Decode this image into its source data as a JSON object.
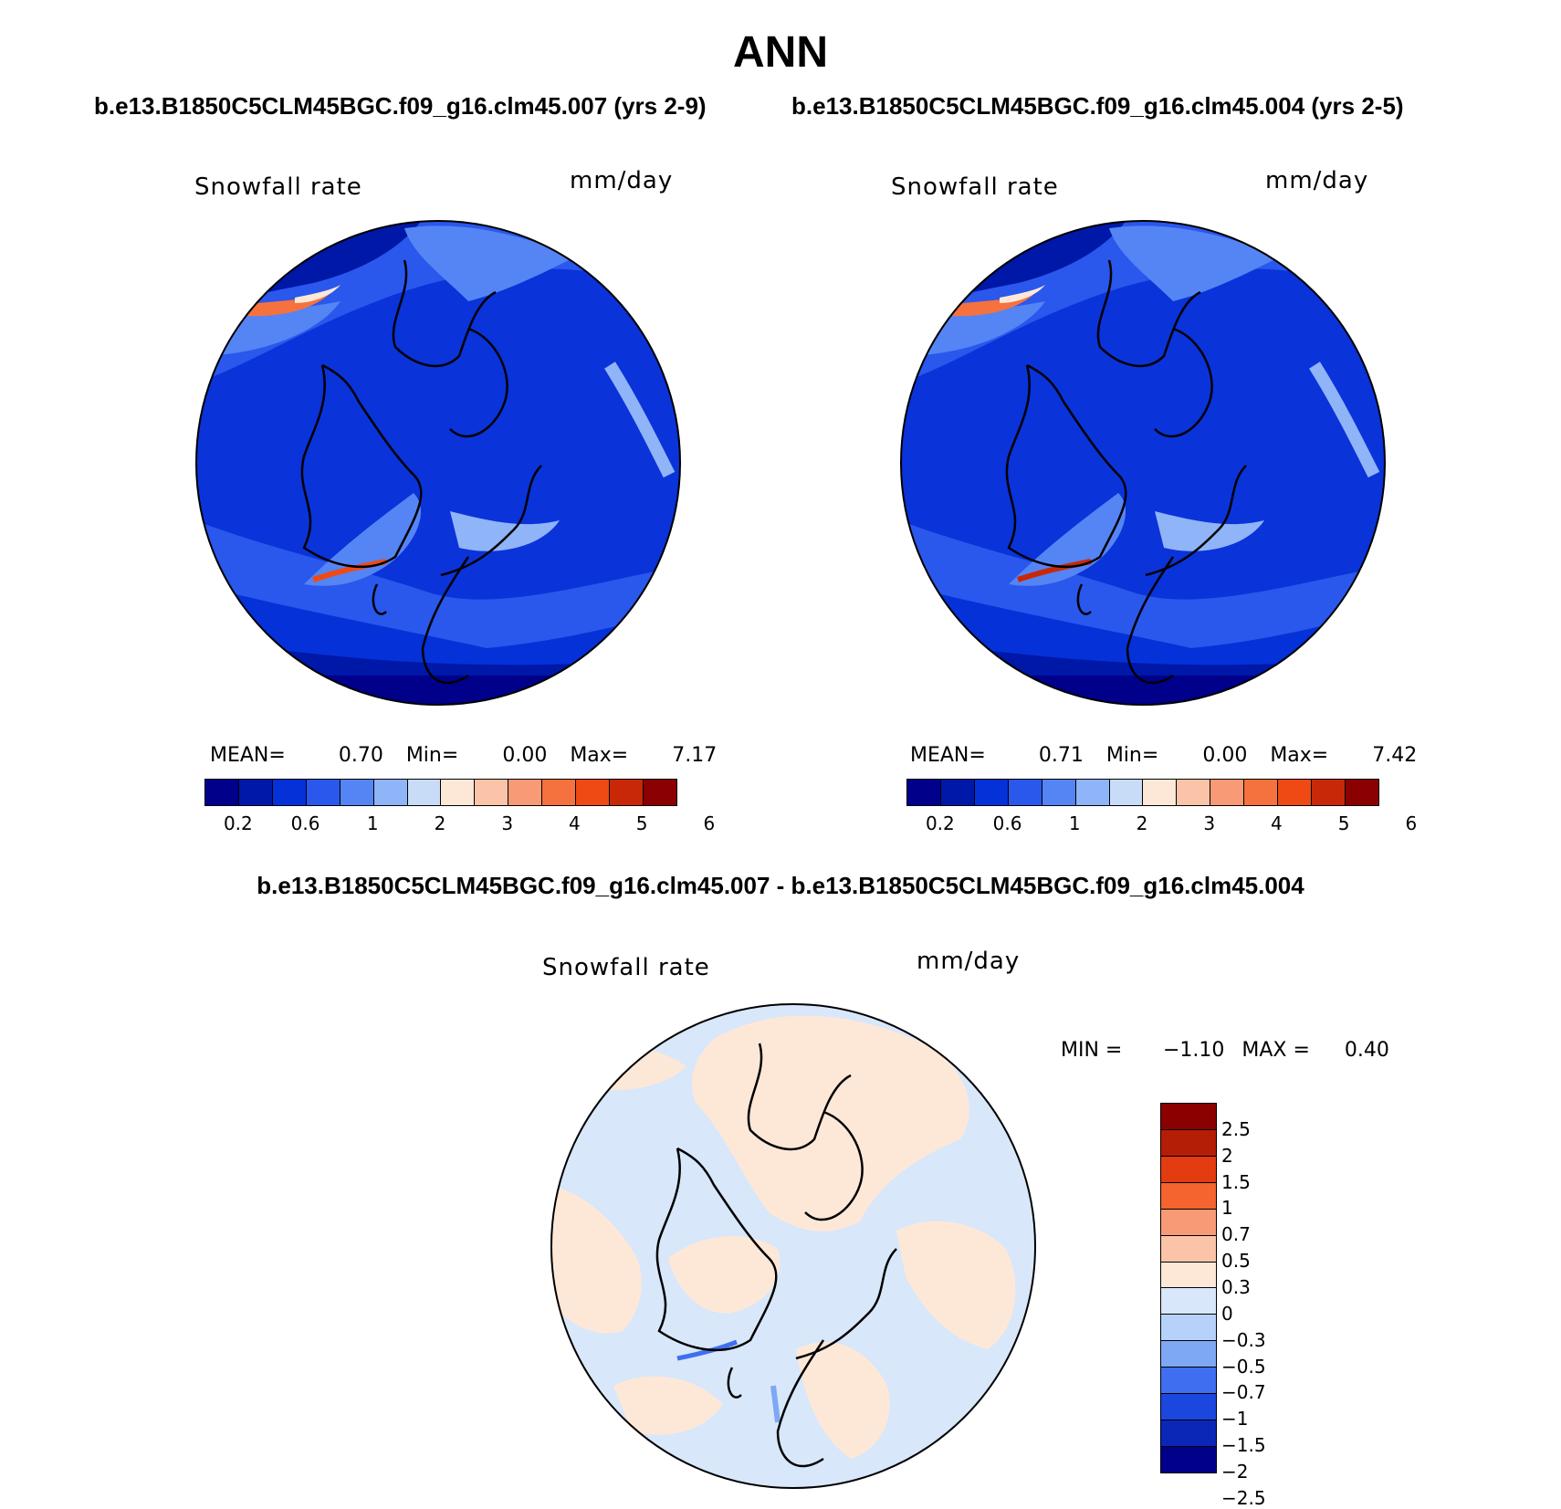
{
  "title": "ANN",
  "panels": {
    "top_left": {
      "header": "b.e13.B1850C5CLM45BGC.f09_g16.clm45.007 (yrs 2-9)",
      "variable": "Snowfall rate",
      "units": "mm/day",
      "stats": {
        "mean_label": "MEAN=",
        "mean": "0.70",
        "min_label": "Min=",
        "min": "0.00",
        "max_label": "Max=",
        "max": "7.17"
      }
    },
    "top_right": {
      "header": "b.e13.B1850C5CLM45BGC.f09_g16.clm45.004 (yrs 2-5)",
      "variable": "Snowfall rate",
      "units": "mm/day",
      "stats": {
        "mean_label": "MEAN=",
        "mean": "0.71",
        "min_label": "Min=",
        "min": "0.00",
        "max_label": "Max=",
        "max": "7.42"
      }
    },
    "bottom": {
      "header": "b.e13.B1850C5CLM45BGC.f09_g16.clm45.007 - b.e13.B1850C5CLM45BGC.f09_g16.clm45.004",
      "variable": "Snowfall rate",
      "units": "mm/day",
      "stats": {
        "min_label": "MIN =",
        "min": "−1.10",
        "max_label": "MAX =",
        "max": "0.40"
      }
    }
  },
  "colorbar_horizontal": {
    "colors": [
      "#00008b",
      "#0018a8",
      "#0531d8",
      "#2a57ec",
      "#5584f4",
      "#8fb4f8",
      "#c8dcf8",
      "#fde8d8",
      "#fbc4a8",
      "#f89a76",
      "#f5723f",
      "#ef4a13",
      "#c92808",
      "#8b0000"
    ],
    "labels": [
      "0.2",
      "0.6",
      "1",
      "2",
      "3",
      "4",
      "5",
      "6"
    ]
  },
  "colorbar_vertical": {
    "colors": [
      "#8b0000",
      "#b41e06",
      "#e23c10",
      "#f5632e",
      "#f89a76",
      "#fbc4a8",
      "#fde8d8",
      "#d8e7fa",
      "#b7d2fa",
      "#7ea8f4",
      "#3f6ff0",
      "#1c47de",
      "#0a27b8",
      "#00008b"
    ],
    "labels": [
      "2.5",
      "2",
      "1.5",
      "1",
      "0.7",
      "0.5",
      "0.3",
      "0",
      "−0.3",
      "−0.5",
      "−0.7",
      "−1",
      "−1.5",
      "−2",
      "−2.5"
    ]
  }
}
